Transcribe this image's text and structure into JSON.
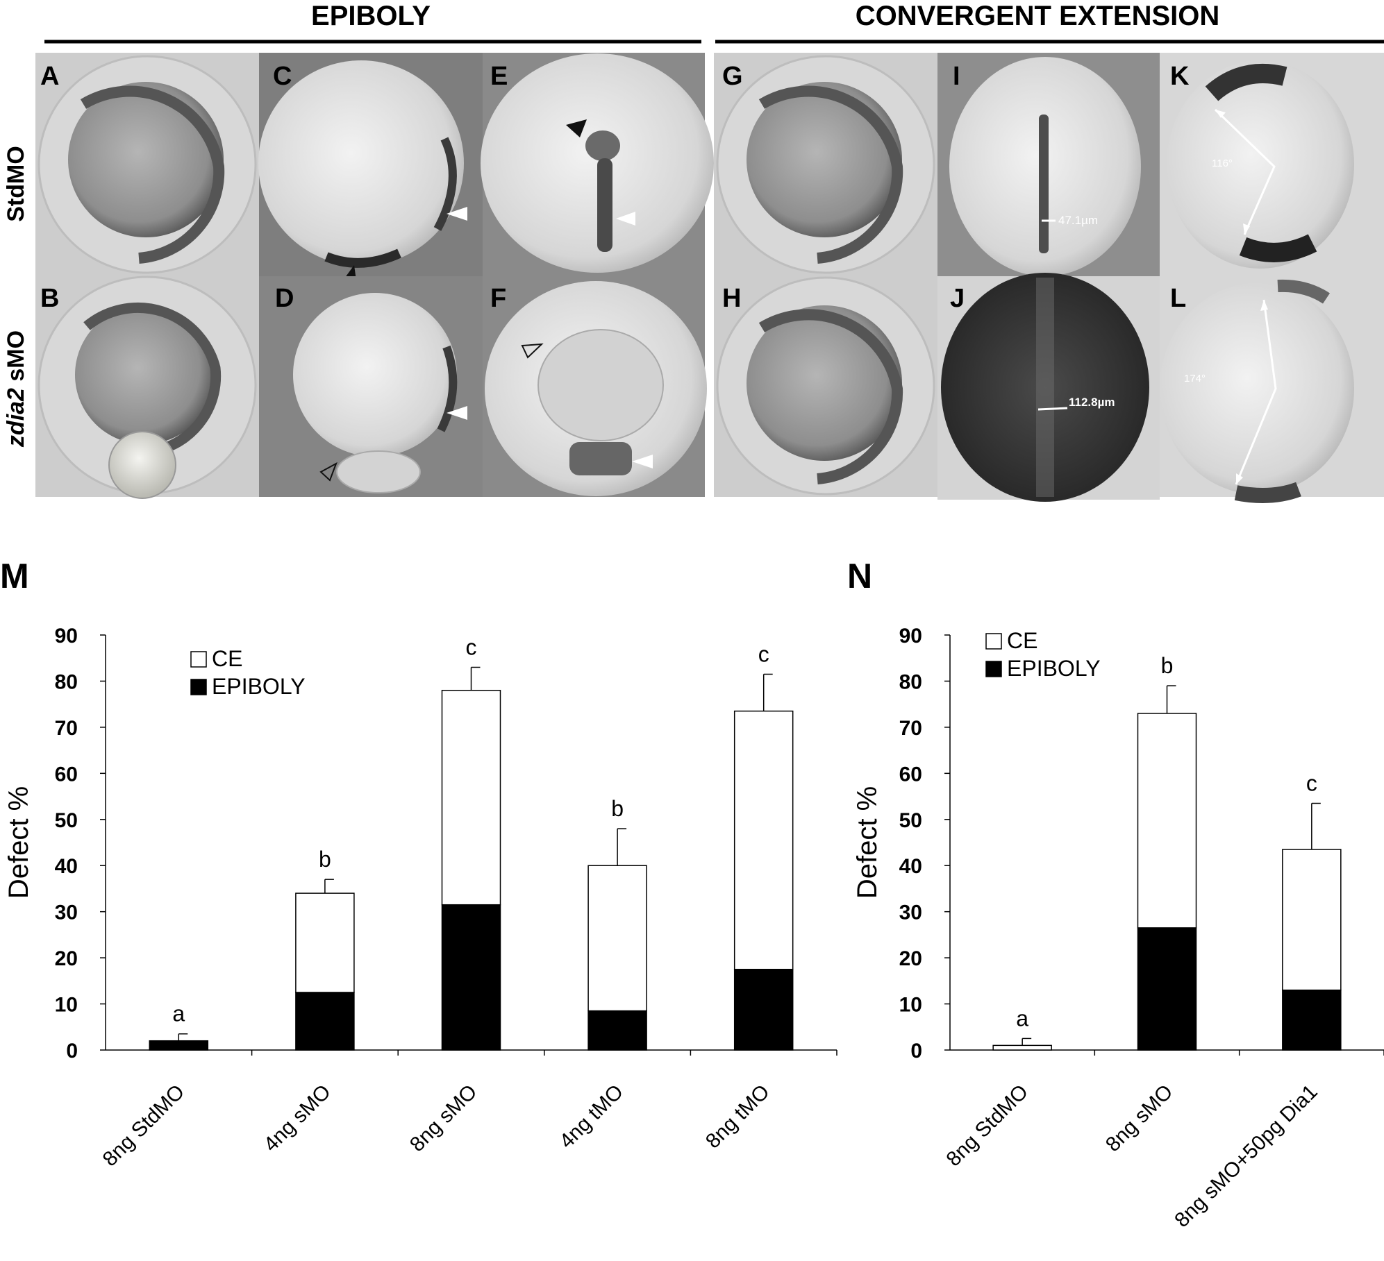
{
  "headers": {
    "epiboly": "EPIBOLY",
    "convergent_extension": "CONVERGENT EXTENSION"
  },
  "row_labels": {
    "top": "StdMO",
    "bottom_italic": "zdia2",
    "bottom_rest": " sMO"
  },
  "panel_letters": [
    "A",
    "B",
    "C",
    "D",
    "E",
    "F",
    "G",
    "H",
    "I",
    "J",
    "K",
    "L"
  ],
  "measurements": {
    "I": "47.1µm",
    "J": "112.8µm",
    "K": "116°",
    "L": "174°"
  },
  "colors": {
    "panel_bg_light": "#cfcfcf",
    "panel_bg_dark": "#858585",
    "embryo_dark": "#5a5a5a",
    "arrow_white": "#ffffff",
    "arrow_black": "#111111",
    "epiboly_fill": "#000000",
    "ce_fill": "#ffffff"
  },
  "chart_data": [
    {
      "panel": "M",
      "type": "bar",
      "stacked": true,
      "ylabel": "Defect %",
      "ylim": [
        0,
        90
      ],
      "yticks": [
        "0",
        "10",
        "20",
        "30",
        "40",
        "50",
        "60",
        "70",
        "80",
        "90"
      ],
      "categories": [
        "8ng StdMO",
        "4ng sMO",
        "8ng sMO",
        "4ng tMO",
        "8ng tMO"
      ],
      "series": [
        {
          "name": "EPIBOLY",
          "values": [
            2,
            12.5,
            31.5,
            8.5,
            17.5
          ]
        },
        {
          "name": "CE",
          "values": [
            0,
            21.5,
            46.5,
            31.5,
            56
          ]
        }
      ],
      "totals": [
        2,
        34,
        78,
        40,
        73.5
      ],
      "error_upper": [
        3.5,
        37,
        83,
        48,
        81.5
      ],
      "significance": [
        "a",
        "b",
        "c",
        "b",
        "c"
      ],
      "legend": [
        "CE",
        "EPIBOLY"
      ]
    },
    {
      "panel": "N",
      "type": "bar",
      "stacked": true,
      "ylabel": "Defect %",
      "ylim": [
        0,
        90
      ],
      "yticks": [
        "0",
        "10",
        "20",
        "30",
        "40",
        "50",
        "60",
        "70",
        "80",
        "90"
      ],
      "categories": [
        "8ng StdMO",
        "8ng sMO",
        "8ng sMO+50pg Dia1"
      ],
      "series": [
        {
          "name": "EPIBOLY",
          "values": [
            0,
            26.5,
            13
          ]
        },
        {
          "name": "CE",
          "values": [
            1,
            46.5,
            30.5
          ]
        }
      ],
      "totals": [
        1,
        73,
        43.5
      ],
      "error_upper": [
        2.5,
        79,
        53.5
      ],
      "significance": [
        "a",
        "b",
        "c"
      ],
      "legend": [
        "CE",
        "EPIBOLY"
      ]
    }
  ]
}
